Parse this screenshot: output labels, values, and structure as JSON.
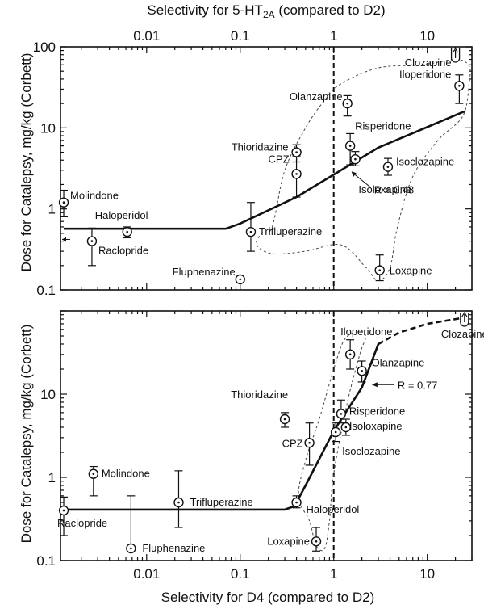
{
  "chart_data": [
    {
      "id": "top",
      "type": "scatter",
      "title": "",
      "xlabel": "Selectivity for 5-HT2A (compared to D2)",
      "xlabel_parts": {
        "pre": "Selectivity for 5-HT",
        "sub": "2A",
        "post": " (compared to D2)"
      },
      "ylabel": "Dose for Catalepsy, mg/kg (Corbett)",
      "x_scale": "log",
      "y_scale": "log",
      "xlim": [
        0.0012,
        30
      ],
      "ylim": [
        0.1,
        100
      ],
      "x_ticks": [
        {
          "v": 0.01,
          "label": "0.01"
        },
        {
          "v": 0.1,
          "label": "0.1"
        },
        {
          "v": 1,
          "label": "1"
        },
        {
          "v": 10,
          "label": "10"
        }
      ],
      "y_ticks": [
        {
          "v": 0.1,
          "label": "0.1"
        },
        {
          "v": 1,
          "label": "1"
        },
        {
          "v": 10,
          "label": "10"
        },
        {
          "v": 100,
          "label": "100"
        }
      ],
      "x_axis_position": "top",
      "reference_line_x": 1,
      "fit_line": {
        "points": [
          [
            0.0013,
            0.57
          ],
          [
            0.07,
            0.57
          ],
          [
            0.1,
            0.66
          ],
          [
            0.4,
            1.4
          ],
          [
            1,
            2.65
          ],
          [
            3,
            5.7
          ],
          [
            25,
            16
          ]
        ],
        "style": "solid"
      },
      "fit_label": "R = 0.48",
      "enclosures": [
        [
          [
            0.22,
            0.6
          ],
          [
            0.3,
            3.0
          ],
          [
            0.5,
            10
          ],
          [
            0.8,
            22
          ],
          [
            1.2,
            35
          ],
          [
            3,
            55
          ],
          [
            9,
            60
          ],
          [
            20,
            70
          ],
          [
            28,
            58
          ],
          [
            28,
            35
          ],
          [
            24,
            14
          ],
          [
            13,
            7
          ],
          [
            7,
            2.5
          ],
          [
            4.8,
            0.6
          ],
          [
            4,
            0.19
          ],
          [
            3,
            0.13
          ],
          [
            2.2,
            0.19
          ],
          [
            1.2,
            0.36
          ],
          [
            0.5,
            0.3
          ],
          [
            0.22,
            0.28
          ],
          [
            0.15,
            0.36
          ],
          [
            0.17,
            0.5
          ]
        ]
      ],
      "points": [
        {
          "name": "Molindone",
          "x": 0.0013,
          "y": 1.2,
          "err": [
            0.8,
            1.7
          ],
          "label": "Molindone"
        },
        {
          "name": "Raclopride",
          "x": 0.0026,
          "y": 0.4,
          "err": [
            0.2,
            0.58
          ],
          "label": "Raclopride"
        },
        {
          "name": "Haloperidol",
          "x": 0.0062,
          "y": 0.52,
          "err": [
            0.44,
            0.6
          ],
          "label": "Haloperidol"
        },
        {
          "name": "Fluphenazine",
          "x": 0.1,
          "y": 0.135,
          "err": null,
          "label": "Fluphenazine"
        },
        {
          "name": "Trifluperazine",
          "x": 0.13,
          "y": 0.52,
          "err": [
            0.3,
            1.2
          ],
          "label": "Trifluperazine"
        },
        {
          "name": "CPZ",
          "x": 0.4,
          "y": 2.7,
          "err": [
            1.4,
            4.5
          ],
          "label": "CPZ"
        },
        {
          "name": "Thioridazine",
          "x": 0.4,
          "y": 5.0,
          "err": [
            3.8,
            6.2
          ],
          "label": "Thioridazine"
        },
        {
          "name": "Olanzapine",
          "x": 1.4,
          "y": 20,
          "err": [
            14,
            25
          ],
          "label": "Olanzapine"
        },
        {
          "name": "Risperidone",
          "x": 1.5,
          "y": 6.0,
          "err": [
            3.5,
            8.5
          ],
          "label": "Risperidone"
        },
        {
          "name": "Isoloxapine",
          "x": 1.7,
          "y": 4.1,
          "err": [
            3.4,
            5.1
          ],
          "label": "Isoloxapine"
        },
        {
          "name": "Isoclozapine",
          "x": 3.8,
          "y": 3.3,
          "err": [
            2.6,
            4.2
          ],
          "label": "Isoclozapine"
        },
        {
          "name": "Loxapine",
          "x": 3.1,
          "y": 0.175,
          "err": [
            0.13,
            0.27
          ],
          "label": "Loxapine"
        },
        {
          "name": "Iloperidone",
          "x": 22,
          "y": 33,
          "err": [
            20,
            45
          ],
          "label": "Iloperidone"
        },
        {
          "name": "Clozapine",
          "x": 20,
          "y": 100,
          "err": null,
          "label": "Clozapine",
          "offscale": true
        }
      ]
    },
    {
      "id": "bottom",
      "type": "scatter",
      "title": "",
      "xlabel": "Selectivity for D4 (compared to D2)",
      "ylabel": "Dose for Catalepsy, mg/kg (Corbett)",
      "x_scale": "log",
      "y_scale": "log",
      "xlim": [
        0.0012,
        30
      ],
      "ylim": [
        0.1,
        100
      ],
      "x_ticks": [
        {
          "v": 0.01,
          "label": "0.01"
        },
        {
          "v": 0.1,
          "label": "0.1"
        },
        {
          "v": 1,
          "label": "1"
        },
        {
          "v": 10,
          "label": "10"
        }
      ],
      "y_ticks": [
        {
          "v": 0.1,
          "label": "0.1"
        },
        {
          "v": 1,
          "label": "1"
        },
        {
          "v": 10,
          "label": "10"
        }
      ],
      "x_axis_position": "bottom",
      "reference_line_x": 1,
      "fit_line": {
        "points": [
          [
            0.0013,
            0.41
          ],
          [
            0.3,
            0.41
          ],
          [
            0.38,
            0.45
          ],
          [
            0.5,
            0.8
          ],
          [
            1,
            3.6
          ],
          [
            2,
            12
          ],
          [
            3,
            40
          ]
        ],
        "style": "solid"
      },
      "fit_line_extension": {
        "points": [
          [
            3,
            40
          ],
          [
            5,
            55
          ],
          [
            10,
            70
          ],
          [
            28,
            85
          ]
        ],
        "style": "dashed"
      },
      "fit_label": "R = 0.77",
      "enclosures": [
        [
          [
            0.42,
            0.58
          ],
          [
            0.55,
            0.3
          ],
          [
            0.65,
            0.15
          ],
          [
            0.8,
            0.14
          ],
          [
            0.9,
            0.3
          ],
          [
            1.0,
            1.1
          ],
          [
            1.4,
            8
          ],
          [
            1.9,
            30
          ],
          [
            2.2,
            50
          ],
          [
            1.8,
            56
          ],
          [
            1.3,
            45
          ],
          [
            1.0,
            20
          ],
          [
            0.7,
            5
          ],
          [
            0.5,
            1.6
          ]
        ]
      ],
      "points": [
        {
          "name": "Raclopride",
          "x": 0.0013,
          "y": 0.4,
          "err": [
            0.2,
            0.58
          ],
          "label": "Raclopride"
        },
        {
          "name": "Molindone",
          "x": 0.0027,
          "y": 1.1,
          "err": [
            0.6,
            1.35
          ],
          "label": "Molindone"
        },
        {
          "name": "Fluphenazine",
          "x": 0.0068,
          "y": 0.14,
          "err": [
            0.14,
            0.6
          ],
          "label": "Fluphenazine"
        },
        {
          "name": "Trifluperazine",
          "x": 0.022,
          "y": 0.5,
          "err": [
            0.25,
            1.2
          ],
          "label": "Trifluperazine"
        },
        {
          "name": "Thioridazine",
          "x": 0.3,
          "y": 5.0,
          "err": [
            4.0,
            6.0
          ],
          "label": "Thioridazine"
        },
        {
          "name": "Haloperidol",
          "x": 0.4,
          "y": 0.5,
          "err": [
            0.43,
            0.6
          ],
          "label": "Haloperidol"
        },
        {
          "name": "CPZ",
          "x": 0.55,
          "y": 2.6,
          "err": [
            1.4,
            4.5
          ],
          "label": "CPZ"
        },
        {
          "name": "Loxapine",
          "x": 0.65,
          "y": 0.17,
          "err": [
            0.13,
            0.25
          ],
          "label": "Loxapine"
        },
        {
          "name": "Isoclozapine",
          "x": 1.05,
          "y": 3.5,
          "err": [
            2.7,
            4.5
          ],
          "label": "Isoclozapine"
        },
        {
          "name": "Risperidone",
          "x": 1.2,
          "y": 5.8,
          "err": [
            4.5,
            8.5
          ],
          "label": "Risperidone"
        },
        {
          "name": "Isoloxapine",
          "x": 1.35,
          "y": 4.0,
          "err": [
            3.2,
            5.0
          ],
          "label": "Isoloxapine"
        },
        {
          "name": "Iloperidone",
          "x": 1.5,
          "y": 30,
          "err": [
            20,
            45
          ],
          "label": "Iloperidone"
        },
        {
          "name": "Olanzapine",
          "x": 2.0,
          "y": 19,
          "err": [
            14,
            25
          ],
          "label": "Olanzapine"
        },
        {
          "name": "Clozapine",
          "x": 25,
          "y": 100,
          "err": null,
          "label": "Clozapine",
          "offscale": true
        }
      ]
    }
  ]
}
